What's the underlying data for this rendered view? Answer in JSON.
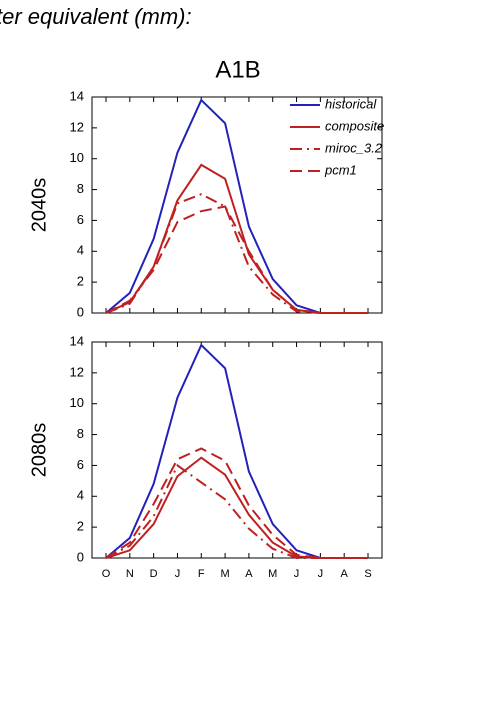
{
  "header": "ter equivalent (mm):",
  "chart_data": [
    {
      "type": "line",
      "title": "A1B",
      "ylabel": "2040s",
      "categories": [
        null,
        null,
        null,
        null,
        null,
        null,
        null,
        null,
        null,
        null,
        null,
        null
      ],
      "ylim": [
        0,
        14
      ],
      "yticks": [
        0,
        2,
        4,
        6,
        8,
        10,
        12,
        14
      ],
      "grid": false,
      "legend": "upper right",
      "series": [
        {
          "name": "historical",
          "color": "#2222bb",
          "dash": "solid",
          "values": [
            0,
            1.3,
            4.8,
            10.4,
            13.8,
            12.3,
            5.6,
            2.2,
            0.5,
            0,
            0,
            0
          ]
        },
        {
          "name": "composite",
          "color": "#c02020",
          "dash": "solid",
          "values": [
            0,
            0.7,
            3.0,
            7.3,
            9.6,
            8.7,
            3.8,
            1.5,
            0.2,
            0,
            0,
            0
          ]
        },
        {
          "name": "miroc_3.2",
          "color": "#c02020",
          "dash": "dashdot",
          "values": [
            0,
            0.6,
            3.0,
            7.1,
            7.7,
            6.9,
            3.0,
            1.2,
            0.1,
            0,
            0,
            0
          ]
        },
        {
          "name": "pcm1",
          "color": "#c02020",
          "dash": "dashed",
          "values": [
            0,
            0.8,
            2.8,
            5.9,
            6.6,
            6.9,
            4.0,
            1.5,
            0.2,
            0,
            0,
            0
          ]
        }
      ]
    },
    {
      "type": "line",
      "ylabel": "2080s",
      "categories": [
        "O",
        "N",
        "D",
        "J",
        "F",
        "M",
        "A",
        "M",
        "J",
        "J",
        "A",
        "S"
      ],
      "ylim": [
        0,
        14
      ],
      "yticks": [
        0,
        2,
        4,
        6,
        8,
        10,
        12,
        14
      ],
      "grid": false,
      "series": [
        {
          "color": "#2222bb",
          "dash": "solid",
          "values": [
            0,
            1.3,
            4.8,
            10.4,
            13.8,
            12.3,
            5.6,
            2.2,
            0.5,
            0,
            0,
            0
          ]
        },
        {
          "color": "#c02020",
          "dash": "solid",
          "values": [
            0,
            0.5,
            2.2,
            5.3,
            6.5,
            5.4,
            2.8,
            1.0,
            0.1,
            0,
            0,
            0
          ]
        },
        {
          "color": "#c02020",
          "dash": "dashdot",
          "values": [
            0,
            0.8,
            2.7,
            6.0,
            4.9,
            3.8,
            1.9,
            0.6,
            0,
            0,
            0,
            0
          ]
        },
        {
          "color": "#c02020",
          "dash": "dashed",
          "values": [
            0,
            1.0,
            3.5,
            6.4,
            7.1,
            6.3,
            3.4,
            1.5,
            0.2,
            0,
            0,
            0
          ]
        }
      ]
    }
  ]
}
